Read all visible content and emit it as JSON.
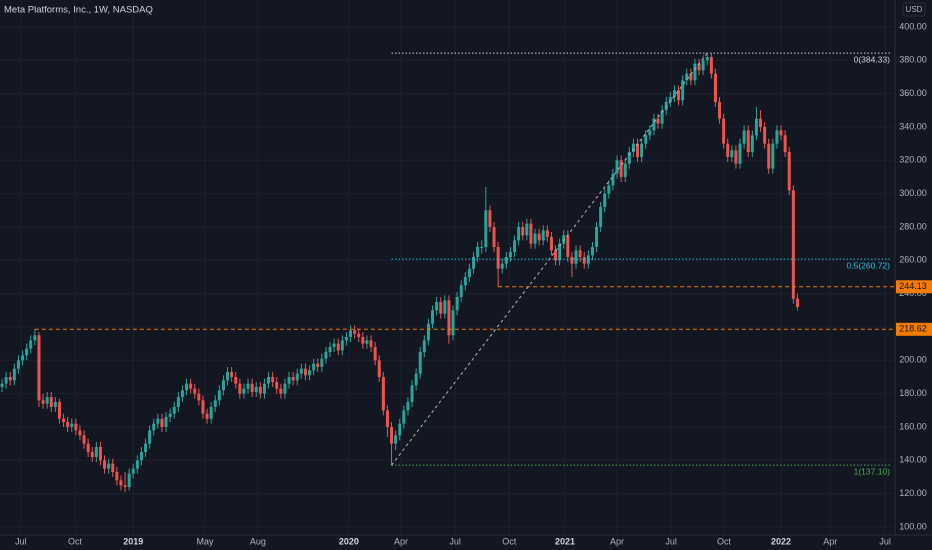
{
  "chart_data": {
    "type": "candlestick",
    "title": "Meta Platforms, Inc., 1W, NASDAQ",
    "currency": "USD",
    "up_color": "#26a69a",
    "down_color": "#ef5350",
    "grid": true,
    "xlim": [
      -0.5,
      217.8
    ],
    "xticks": [
      {
        "value": 4.6,
        "label": "Jul"
      },
      {
        "value": 17.8,
        "label": "Oct"
      },
      {
        "value": 32,
        "label": "2019"
      },
      {
        "value": 49.5,
        "label": "May"
      },
      {
        "value": 62.4,
        "label": "Aug"
      },
      {
        "value": 84.6,
        "label": "2020"
      },
      {
        "value": 97.3,
        "label": "Apr"
      },
      {
        "value": 110.5,
        "label": "Jul"
      },
      {
        "value": 123.7,
        "label": "Oct"
      },
      {
        "value": 137.3,
        "label": "2021"
      },
      {
        "value": 150,
        "label": "Apr"
      },
      {
        "value": 163.2,
        "label": "Jul"
      },
      {
        "value": 176.1,
        "label": "Oct"
      },
      {
        "value": 190,
        "label": "2022"
      },
      {
        "value": 202,
        "label": "Apr"
      },
      {
        "value": 215.4,
        "label": "Jul"
      }
    ],
    "ylim": [
      95.2,
      416.2
    ],
    "yticks": [
      {
        "value": 100,
        "label": "100.00"
      },
      {
        "value": 120,
        "label": "120.00"
      },
      {
        "value": 140,
        "label": "140.00"
      },
      {
        "value": 160,
        "label": "160.00"
      },
      {
        "value": 180,
        "label": "180.00"
      },
      {
        "value": 200,
        "label": "200.00"
      },
      {
        "value": 220,
        "label": "220.00"
      },
      {
        "value": 240,
        "label": "240.00"
      },
      {
        "value": 260,
        "label": "260.00"
      },
      {
        "value": 280,
        "label": "280.00"
      },
      {
        "value": 300,
        "label": "300.00"
      },
      {
        "value": 320,
        "label": "320.00"
      },
      {
        "value": 340,
        "label": "340.00"
      },
      {
        "value": 360,
        "label": "360.00"
      },
      {
        "value": 380,
        "label": "380.00"
      },
      {
        "value": 400,
        "label": "400.00"
      }
    ],
    "fib_levels": [
      {
        "value": 384.33,
        "label": "0(384.33)",
        "color": "#d1d4dc"
      },
      {
        "value": 260.72,
        "label": "0.5(260.72)",
        "color": "#26c6da"
      },
      {
        "value": 137.1,
        "label": "1(137.10)",
        "color": "#4caf50"
      }
    ],
    "price_lines": [
      {
        "value": 244.13,
        "color": "#f57c00"
      },
      {
        "value": 218.62,
        "color": "#f57c00"
      }
    ],
    "candles": [
      [
        184,
        189,
        181,
        186
      ],
      [
        186,
        193,
        183,
        190
      ],
      [
        190,
        193,
        185,
        188
      ],
      [
        188,
        198,
        185,
        195
      ],
      [
        195,
        203,
        192,
        200
      ],
      [
        200,
        206,
        197,
        203
      ],
      [
        203,
        210,
        200,
        207
      ],
      [
        207,
        215,
        204,
        212
      ],
      [
        212,
        218.62,
        209,
        215
      ],
      [
        215,
        217,
        172,
        176
      ],
      [
        176,
        180,
        171,
        174
      ],
      [
        174,
        181,
        171,
        178
      ],
      [
        178,
        181,
        169,
        172
      ],
      [
        172,
        178,
        169,
        175
      ],
      [
        175,
        177,
        162,
        165
      ],
      [
        165,
        168,
        160,
        163
      ],
      [
        163,
        166,
        157,
        160
      ],
      [
        160,
        165,
        157,
        162
      ],
      [
        162,
        165,
        155,
        158
      ],
      [
        158,
        161,
        152,
        155
      ],
      [
        155,
        158,
        147,
        150
      ],
      [
        150,
        153,
        142,
        145
      ],
      [
        145,
        148,
        139,
        142
      ],
      [
        142,
        151,
        139,
        148
      ],
      [
        148,
        151,
        137,
        140
      ],
      [
        140,
        143,
        132,
        135
      ],
      [
        135,
        141,
        132,
        138
      ],
      [
        138,
        141,
        130,
        133
      ],
      [
        133,
        136,
        125,
        128
      ],
      [
        128,
        131,
        122,
        125
      ],
      [
        125,
        133,
        121,
        124
      ],
      [
        124,
        135,
        122,
        132
      ],
      [
        132,
        138,
        129,
        135
      ],
      [
        135,
        143,
        132,
        140
      ],
      [
        140,
        148,
        137,
        145
      ],
      [
        145,
        153,
        142,
        150
      ],
      [
        150,
        161,
        147,
        158
      ],
      [
        158,
        165,
        155,
        162
      ],
      [
        162,
        168,
        159,
        165
      ],
      [
        165,
        168,
        157,
        160
      ],
      [
        160,
        169,
        157,
        166
      ],
      [
        166,
        171,
        163,
        168
      ],
      [
        168,
        175,
        165,
        172
      ],
      [
        172,
        181,
        169,
        178
      ],
      [
        178,
        185,
        175,
        182
      ],
      [
        182,
        189,
        179,
        186
      ],
      [
        186,
        189,
        180,
        183
      ],
      [
        183,
        186,
        177,
        180
      ],
      [
        180,
        183,
        173,
        176
      ],
      [
        176,
        179,
        165,
        168
      ],
      [
        168,
        171,
        162,
        165
      ],
      [
        165,
        175,
        162,
        172
      ],
      [
        172,
        179,
        169,
        176
      ],
      [
        176,
        185,
        173,
        182
      ],
      [
        182,
        191,
        179,
        188
      ],
      [
        188,
        196,
        185,
        193
      ],
      [
        193,
        196,
        187,
        190
      ],
      [
        190,
        193,
        183,
        186
      ],
      [
        186,
        189,
        177,
        180
      ],
      [
        180,
        186,
        177,
        183
      ],
      [
        183,
        189,
        180,
        186
      ],
      [
        186,
        189,
        178,
        181
      ],
      [
        181,
        187,
        178,
        184
      ],
      [
        184,
        187,
        177,
        180
      ],
      [
        180,
        189,
        177,
        186
      ],
      [
        186,
        193,
        183,
        190
      ],
      [
        190,
        193,
        184,
        187
      ],
      [
        187,
        190,
        180,
        183
      ],
      [
        183,
        186,
        177,
        180
      ],
      [
        180,
        189,
        177,
        186
      ],
      [
        186,
        193,
        183,
        190
      ],
      [
        190,
        193,
        185,
        188
      ],
      [
        188,
        195,
        185,
        192
      ],
      [
        192,
        198,
        189,
        195
      ],
      [
        195,
        198,
        188,
        191
      ],
      [
        191,
        197,
        188,
        194
      ],
      [
        194,
        201,
        191,
        198
      ],
      [
        198,
        201,
        193,
        196
      ],
      [
        196,
        204,
        193,
        201
      ],
      [
        201,
        208,
        198,
        205
      ],
      [
        205,
        211,
        202,
        208
      ],
      [
        208,
        213,
        205,
        210
      ],
      [
        210,
        213,
        203,
        206
      ],
      [
        206,
        215,
        203,
        212
      ],
      [
        212,
        217,
        209,
        214
      ],
      [
        214,
        221,
        211,
        218
      ],
      [
        218,
        221,
        213,
        216
      ],
      [
        216,
        219,
        211,
        214
      ],
      [
        214,
        217,
        207,
        210
      ],
      [
        210,
        215,
        207,
        212
      ],
      [
        212,
        215,
        205,
        208
      ],
      [
        208,
        211,
        197,
        200
      ],
      [
        200,
        203,
        187,
        190
      ],
      [
        190,
        193,
        167,
        170
      ],
      [
        170,
        173,
        154,
        160
      ],
      [
        160,
        163,
        137.1,
        150
      ],
      [
        150,
        158,
        146,
        155
      ],
      [
        155,
        165,
        152,
        162
      ],
      [
        162,
        173,
        159,
        170
      ],
      [
        170,
        178,
        167,
        175
      ],
      [
        175,
        188,
        172,
        185
      ],
      [
        185,
        195,
        182,
        192
      ],
      [
        192,
        208,
        189,
        205
      ],
      [
        205,
        215,
        202,
        212
      ],
      [
        212,
        225,
        209,
        222
      ],
      [
        222,
        233,
        219,
        230
      ],
      [
        230,
        238,
        227,
        235
      ],
      [
        235,
        238,
        225,
        228
      ],
      [
        228,
        239,
        225,
        236
      ],
      [
        236,
        239,
        210,
        215
      ],
      [
        215,
        233,
        212,
        230
      ],
      [
        230,
        241,
        227,
        238
      ],
      [
        238,
        248,
        235,
        245
      ],
      [
        245,
        253,
        242,
        250
      ],
      [
        250,
        258,
        247,
        255
      ],
      [
        255,
        265,
        252,
        262
      ],
      [
        262,
        271,
        259,
        268
      ],
      [
        268,
        272,
        264,
        268
      ],
      [
        268,
        304,
        265,
        290
      ],
      [
        290,
        293,
        277,
        280
      ],
      [
        280,
        283,
        265,
        268
      ],
      [
        268,
        271,
        244.13,
        255
      ],
      [
        255,
        261,
        252,
        258
      ],
      [
        258,
        265,
        255,
        262
      ],
      [
        262,
        268,
        259,
        265
      ],
      [
        265,
        275,
        262,
        272
      ],
      [
        272,
        283,
        269,
        280
      ],
      [
        280,
        283,
        272,
        275
      ],
      [
        275,
        285,
        272,
        282
      ],
      [
        282,
        285,
        267,
        270
      ],
      [
        270,
        279,
        267,
        276
      ],
      [
        276,
        279,
        269,
        272
      ],
      [
        272,
        281,
        269,
        278
      ],
      [
        278,
        281,
        271,
        274
      ],
      [
        274,
        277,
        263,
        266
      ],
      [
        266,
        269,
        257,
        260
      ],
      [
        260,
        273,
        257,
        270
      ],
      [
        270,
        278,
        267,
        275
      ],
      [
        275,
        278,
        259,
        262
      ],
      [
        262,
        265,
        250,
        258
      ],
      [
        258,
        269,
        255,
        266
      ],
      [
        266,
        269,
        259,
        262
      ],
      [
        262,
        265,
        255,
        258
      ],
      [
        258,
        266,
        255,
        263
      ],
      [
        263,
        271,
        260,
        268
      ],
      [
        268,
        283,
        265,
        280
      ],
      [
        280,
        295,
        277,
        292
      ],
      [
        292,
        303,
        289,
        300
      ],
      [
        300,
        308,
        297,
        305
      ],
      [
        305,
        315,
        302,
        312
      ],
      [
        312,
        323,
        309,
        320
      ],
      [
        320,
        323,
        307,
        310
      ],
      [
        310,
        321,
        307,
        318
      ],
      [
        318,
        328,
        315,
        325
      ],
      [
        325,
        333,
        322,
        330
      ],
      [
        330,
        333,
        319,
        322
      ],
      [
        322,
        333,
        319,
        330
      ],
      [
        330,
        338,
        327,
        335
      ],
      [
        335,
        341,
        332,
        338
      ],
      [
        338,
        348,
        335,
        345
      ],
      [
        345,
        348,
        339,
        342
      ],
      [
        342,
        353,
        339,
        350
      ],
      [
        350,
        358,
        347,
        355
      ],
      [
        355,
        361,
        352,
        358
      ],
      [
        358,
        365,
        355,
        362
      ],
      [
        362,
        365,
        353,
        356
      ],
      [
        356,
        371,
        353,
        368
      ],
      [
        368,
        375,
        365,
        372
      ],
      [
        372,
        375,
        365,
        368
      ],
      [
        368,
        381,
        365,
        378
      ],
      [
        378,
        381,
        371,
        374
      ],
      [
        374,
        383,
        371,
        380
      ],
      [
        380,
        384.33,
        377,
        382
      ],
      [
        382,
        384,
        369,
        372
      ],
      [
        372,
        375,
        352,
        355
      ],
      [
        355,
        358,
        342,
        345
      ],
      [
        345,
        348,
        327,
        330
      ],
      [
        330,
        333,
        319,
        322
      ],
      [
        322,
        329,
        319,
        326
      ],
      [
        326,
        329,
        315,
        318
      ],
      [
        318,
        333,
        315,
        330
      ],
      [
        330,
        341,
        327,
        338
      ],
      [
        338,
        341,
        322,
        325
      ],
      [
        325,
        338,
        322,
        335
      ],
      [
        335,
        352,
        332,
        345
      ],
      [
        345,
        350,
        337,
        340
      ],
      [
        340,
        343,
        327,
        330
      ],
      [
        330,
        333,
        312,
        315
      ],
      [
        315,
        333,
        312,
        330
      ],
      [
        330,
        341,
        327,
        338
      ],
      [
        338,
        341,
        332,
        335
      ],
      [
        335,
        338,
        322,
        325
      ],
      [
        325,
        328,
        299,
        302
      ],
      [
        302,
        305,
        234,
        237
      ],
      [
        237,
        240,
        230,
        232
      ]
    ]
  }
}
